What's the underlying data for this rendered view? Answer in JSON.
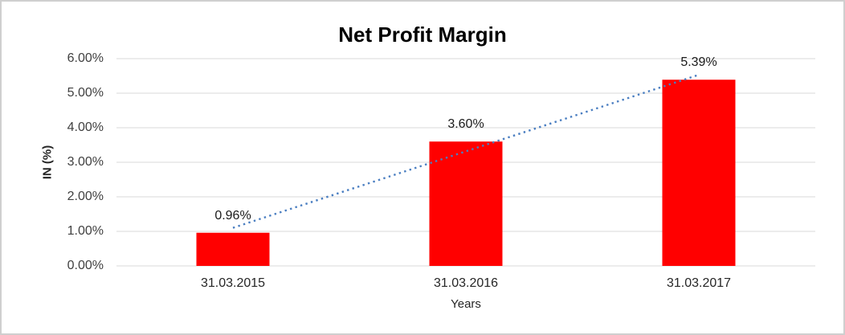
{
  "window": {
    "background": "#ffffff",
    "border_color": "#cfcfcf"
  },
  "chart_data": {
    "type": "bar",
    "title": "Net Profit Margin",
    "xlabel": "Years",
    "ylabel": "IN (%)",
    "categories": [
      "31.03.2015",
      "31.03.2016",
      "31.03.2017"
    ],
    "values": [
      0.96,
      3.6,
      5.39
    ],
    "data_labels": [
      "0.96%",
      "3.60%",
      "5.39%"
    ],
    "ylim": [
      0,
      6
    ],
    "ytick_step": 1,
    "ytick_labels": [
      "0.00%",
      "1.00%",
      "2.00%",
      "3.00%",
      "4.00%",
      "5.00%",
      "6.00%"
    ],
    "grid": true,
    "legend_position": "none",
    "bar_color": "#ff0000",
    "gridline_color": "#d9d9d9",
    "trendline": {
      "type": "linear",
      "style": "dotted",
      "color": "#4a7ec1"
    }
  }
}
